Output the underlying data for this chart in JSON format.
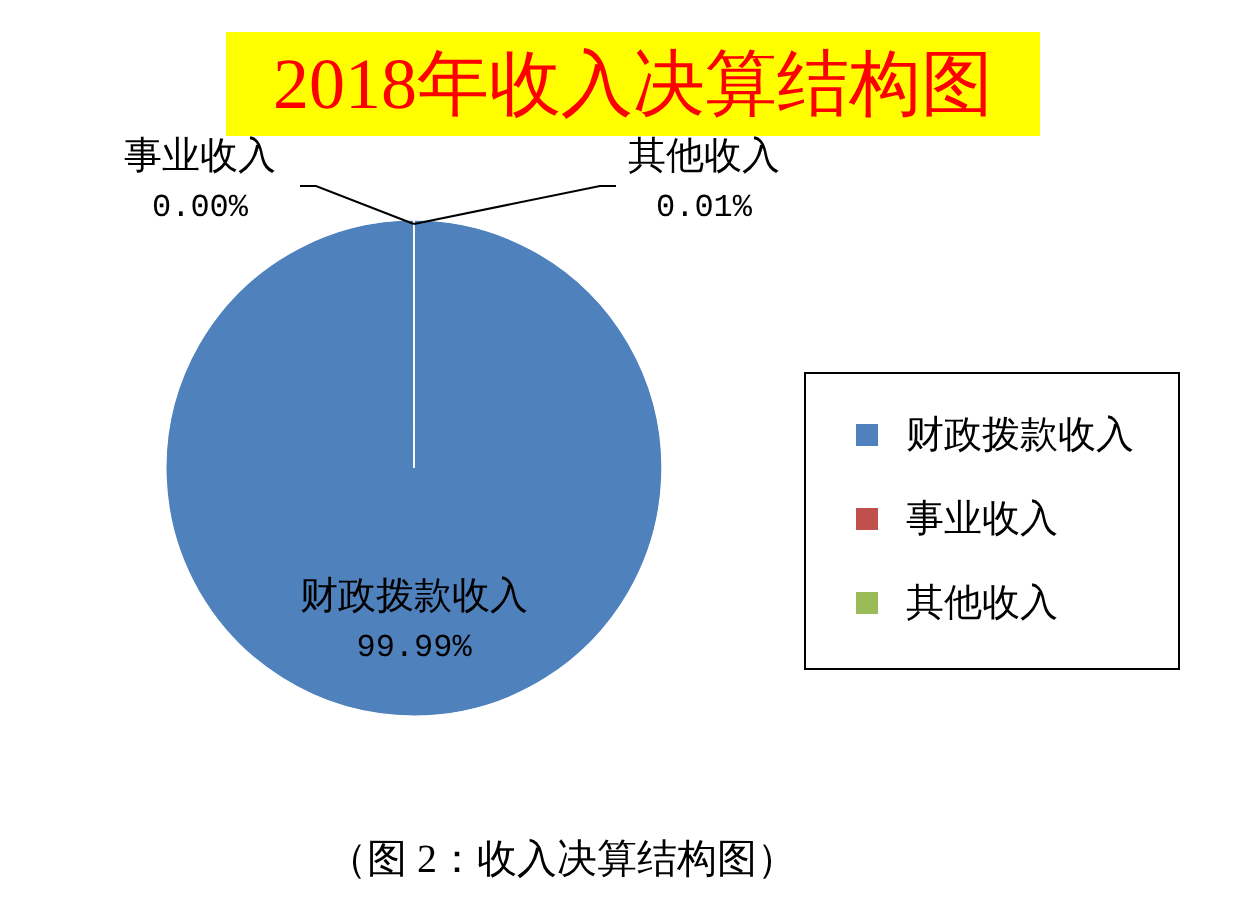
{
  "chart_data": {
    "type": "pie",
    "title": "2018年收入决算结构图",
    "categories": [
      "财政拨款收入",
      "事业收入",
      "其他收入"
    ],
    "values": [
      99.99,
      0,
      0.01
    ],
    "colors": [
      "#4f81bd",
      "#c0504d",
      "#9bbb59"
    ],
    "value_labels": [
      "99.99%",
      "0.00%",
      "0.01%"
    ],
    "legend": "right",
    "annotations": [
      "（图 2：收入决算结构图）"
    ]
  }
}
